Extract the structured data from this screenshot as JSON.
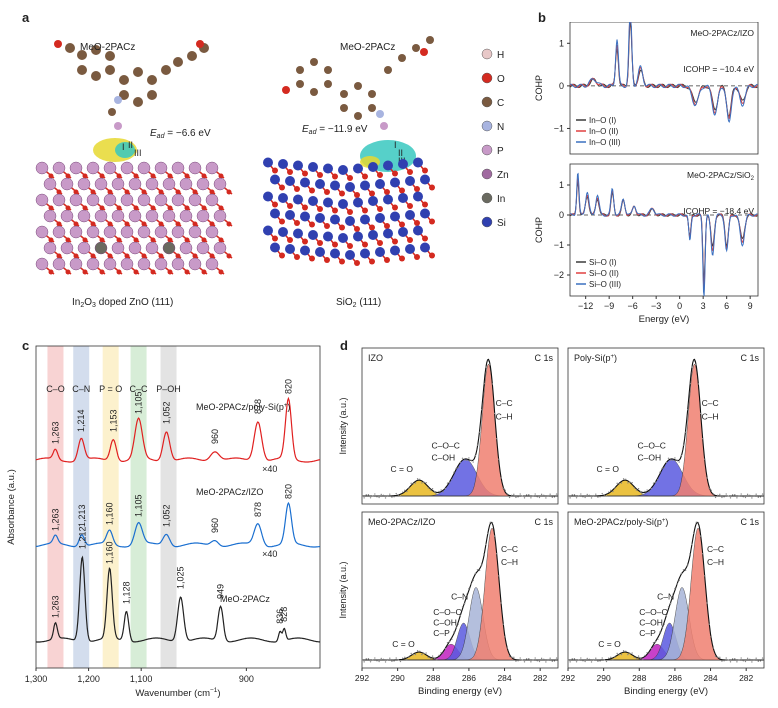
{
  "panels": {
    "a": {
      "letter": "a",
      "left": {
        "molecule": "MeO-2PACz",
        "ead_label": "E",
        "ead_sub": "ad",
        "ead_value": " = −6.6 eV",
        "substrate_a": "In",
        "substrate_sub": "2",
        "substrate_b": "O",
        "substrate_sub2": "3",
        "substrate_c": " doped ZnO (111)",
        "site_labels": [
          "I",
          "II",
          "III"
        ]
      },
      "right": {
        "molecule": "MeO-2PACz",
        "ead_label": "E",
        "ead_sub": "ad",
        "ead_value": " = −11.9 eV",
        "substrate": "SiO",
        "substrate_sub": "2",
        "substrate_end": " (111)",
        "site_labels": [
          "I",
          "II",
          "III"
        ]
      },
      "legend": [
        {
          "label": "H",
          "color": "#e8c8c8"
        },
        {
          "label": "O",
          "color": "#d42a20"
        },
        {
          "label": "C",
          "color": "#7a5a40"
        },
        {
          "label": "N",
          "color": "#a8b4e0"
        },
        {
          "label": "P",
          "color": "#c89ac8"
        },
        {
          "label": "Zn",
          "color": "#a06aa0"
        },
        {
          "label": "In",
          "color": "#6a6a60"
        },
        {
          "label": "Si",
          "color": "#3040b0"
        }
      ]
    },
    "b": {
      "letter": "b",
      "top": {
        "title": "MeO-2PACz/IZO",
        "icohp": "ICOHP = −10.4 eV",
        "ylabel": "COHP",
        "yticks": [
          "1",
          "0",
          "−1"
        ],
        "legend": [
          "In–O (I)",
          "In–O (II)",
          "In–O (III)"
        ]
      },
      "bottom": {
        "title": "MeO-2PACz/SiO",
        "title_sub": "2",
        "icohp": "ICOHP = −18.4 eV",
        "ylabel": "COHP",
        "yticks": [
          "1",
          "0",
          "−1",
          "−2"
        ],
        "legend": [
          "Si–O (I)",
          "Si–O (II)",
          "Si–O (III)"
        ]
      },
      "xticks": [
        "−12",
        "−9",
        "−6",
        "−3",
        "0",
        "3",
        "6",
        "9"
      ],
      "xlabel": "Energy (eV)",
      "colors": [
        "#3a3a3a",
        "#e04040",
        "#3a70c0"
      ]
    },
    "c": {
      "letter": "c",
      "ylabel": "Absorbance (a.u.)",
      "xlabel": "Wavenumber (cm",
      "xlabel_sup": "−1",
      "xlabel_end": ")",
      "xticks": [
        "1,300",
        "1,200",
        "1,100",
        "900"
      ],
      "bands": [
        {
          "label": "C–O",
          "color": "#f6c8c8"
        },
        {
          "label": "C–N",
          "color": "#c8d4e8"
        },
        {
          "label": "P = O",
          "color": "#fbeec0"
        },
        {
          "label": "C–C",
          "color": "#cde8cd"
        },
        {
          "label": "P–OH",
          "color": "#dcdcdc"
        }
      ],
      "series": [
        {
          "name": "MeO-2PACz/poly-Si(p",
          "name_sup": "+",
          "name_end": ")",
          "color": "#e02020",
          "peaks": [
            "1,263",
            "1,214",
            "1,153",
            "1,105",
            "1,052",
            "960",
            "878",
            "820"
          ],
          "scale": "×40"
        },
        {
          "name": "MeO-2PACz/IZO",
          "color": "#1a6fd0",
          "peaks": [
            "1,263",
            "1,213",
            "1,160",
            "1,105",
            "1,052",
            "960",
            "878",
            "820"
          ],
          "scale": "×40"
        },
        {
          "name": "MeO-2PACz",
          "color": "#222222",
          "peaks": [
            "1,263",
            "1,212",
            "1,160",
            "1,128",
            "1,025",
            "949",
            "836",
            "828"
          ]
        }
      ]
    },
    "d": {
      "letter": "d",
      "ylabel": "Intensity (a.u.)",
      "xlabel": "Binding energy (eV)",
      "xticks": [
        "292",
        "290",
        "288",
        "286",
        "284",
        "282"
      ],
      "subplots": [
        {
          "title": "IZO",
          "core": "C 1s",
          "labels": [
            "C–C",
            "C–H",
            "C–O–C",
            "C–OH",
            "C = O"
          ]
        },
        {
          "title": "Poly-Si(p",
          "title_sup": "+",
          "title_end": ")",
          "core": "C 1s",
          "labels": [
            "C–C",
            "C–H",
            "C–O–C",
            "C–OH",
            "C = O"
          ]
        },
        {
          "title": "MeO-2PACz/IZO",
          "core": "C 1s",
          "labels": [
            "C–C",
            "C–H",
            "C–N",
            "C–O–C",
            "C–OH",
            "C–P",
            "C = O"
          ]
        },
        {
          "title": "MeO-2PACz/poly-Si(p",
          "title_sup": "+",
          "title_end": ")",
          "core": "C 1s",
          "labels": [
            "C–C",
            "C–H",
            "C–N",
            "C–O–C",
            "C–OH",
            "C–P",
            "C = O"
          ]
        }
      ]
    }
  }
}
